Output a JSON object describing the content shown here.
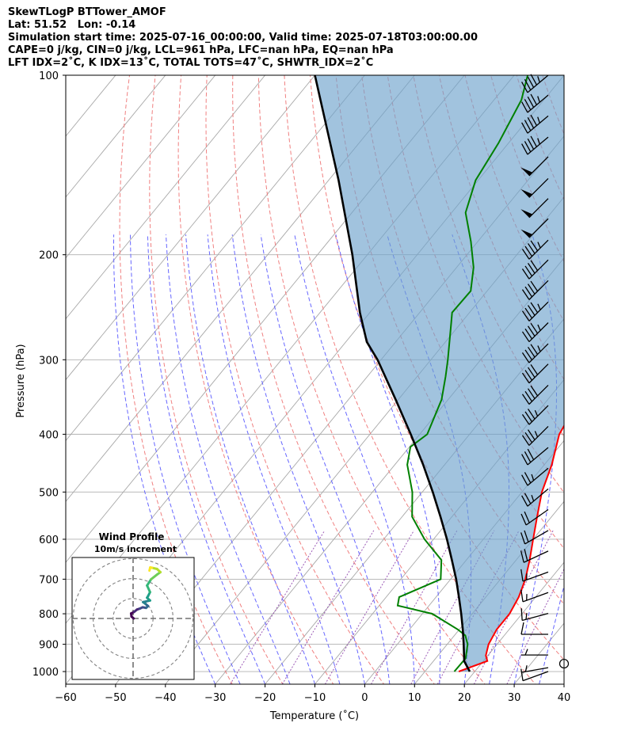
{
  "header": {
    "line1": "SkewTLogP BTTower_AMOF",
    "line2": "Lat: 51.52   Lon: -0.14",
    "line3": "Simulation start time: 2025-07-16_00:00:00, Valid time: 2025-07-18T03:00:00.00",
    "line4": "CAPE=0 j/kg, CIN=0 j/kg, LCL=961 hPa, LFC=nan hPa, EQ=nan hPa",
    "line5": "LFT IDX=2˚C, K IDX=13˚C, TOTAL TOTS=47˚C, SHWTR_IDX=2˚C"
  },
  "chart_data": {
    "type": "line",
    "xlabel": "Temperature (˚C)",
    "ylabel": "Pressure (hPa)",
    "xlim": [
      -60,
      40
    ],
    "ylim": [
      1050,
      100
    ],
    "y_scale": "log",
    "skew": true,
    "grid": true,
    "xticks": [
      "−60",
      "−50",
      "−40",
      "−30",
      "−20",
      "−10",
      "0",
      "10",
      "20",
      "30",
      "40"
    ],
    "xtick_values": [
      -60,
      -50,
      -40,
      -30,
      -20,
      -10,
      0,
      10,
      20,
      30,
      40
    ],
    "yticks": [
      "100",
      "200",
      "300",
      "400",
      "500",
      "600",
      "700",
      "800",
      "900",
      "1000"
    ],
    "ytick_values": [
      100,
      200,
      300,
      400,
      500,
      600,
      700,
      800,
      900,
      1000
    ],
    "series": [
      {
        "name": "",
        "role": "temperature",
        "color": "#ff0000",
        "points": [
          [
            1000,
            16.8
          ],
          [
            960,
            20.8
          ],
          [
            940,
            19.6
          ],
          [
            900,
            18.3
          ],
          [
            850,
            17.5
          ],
          [
            800,
            17.5
          ],
          [
            750,
            16.6
          ],
          [
            700,
            15.0
          ],
          [
            650,
            12.7
          ],
          [
            600,
            10.0
          ],
          [
            550,
            7.1
          ],
          [
            500,
            4.0
          ],
          [
            450,
            1.5
          ],
          [
            400,
            -2.0
          ],
          [
            370,
            -3.0
          ],
          [
            340,
            -5.3
          ],
          [
            300,
            -7.4
          ],
          [
            280,
            -9.5
          ],
          [
            260,
            -12.9
          ],
          [
            250,
            -13.5
          ],
          [
            230,
            -12.0
          ],
          [
            215,
            -10.9
          ],
          [
            205,
            -9.0
          ],
          [
            190,
            -9.2
          ],
          [
            180,
            -10.1
          ],
          [
            170,
            -10.3
          ],
          [
            160,
            -9.6
          ],
          [
            150,
            -8.8
          ],
          [
            140,
            -10.7
          ],
          [
            130,
            -14.1
          ],
          [
            120,
            -17.2
          ],
          [
            110,
            -19.2
          ],
          [
            100,
            -21.2
          ]
        ]
      },
      {
        "name": "",
        "role": "dewpoint",
        "color": "#008000",
        "points": [
          [
            1000,
            15.9
          ],
          [
            950,
            16.0
          ],
          [
            900,
            14.1
          ],
          [
            870,
            12.2
          ],
          [
            850,
            9.7
          ],
          [
            800,
            2.0
          ],
          [
            775,
            -6.3
          ],
          [
            750,
            -7.4
          ],
          [
            700,
            -2.0
          ],
          [
            650,
            -5.0
          ],
          [
            600,
            -11.8
          ],
          [
            550,
            -18.0
          ],
          [
            500,
            -22.0
          ],
          [
            450,
            -27.5
          ],
          [
            420,
            -29.8
          ],
          [
            400,
            -28.5
          ],
          [
            350,
            -31.3
          ],
          [
            320,
            -34.3
          ],
          [
            300,
            -36.6
          ],
          [
            260,
            -42.0
          ],
          [
            250,
            -43.5
          ],
          [
            230,
            -43.3
          ],
          [
            210,
            -46.6
          ],
          [
            190,
            -51.4
          ],
          [
            170,
            -57.2
          ],
          [
            150,
            -60.5
          ],
          [
            130,
            -62.0
          ],
          [
            110,
            -64.5
          ],
          [
            100,
            -67.3
          ]
        ]
      },
      {
        "name": "",
        "role": "parcel",
        "color": "#000000",
        "points": [
          [
            1000,
            19.0
          ],
          [
            961,
            16.2
          ],
          [
            900,
            13.3
          ],
          [
            850,
            10.7
          ],
          [
            800,
            7.8
          ],
          [
            750,
            4.6
          ],
          [
            700,
            1.1
          ],
          [
            650,
            -2.9
          ],
          [
            600,
            -7.3
          ],
          [
            550,
            -12.3
          ],
          [
            500,
            -17.9
          ],
          [
            450,
            -24.3
          ],
          [
            400,
            -31.8
          ],
          [
            350,
            -40.5
          ],
          [
            300,
            -50.7
          ],
          [
            280,
            -55.8
          ],
          [
            250,
            -62.0
          ],
          [
            200,
            -73.0
          ],
          [
            150,
            -88.0
          ],
          [
            100,
            -110.0
          ]
        ]
      }
    ],
    "shading": "between temperature and parcel",
    "wind_barbs": {
      "pressures": [
        100,
        108,
        117,
        127,
        137,
        149,
        161,
        174,
        189,
        204,
        221,
        240,
        260,
        282,
        305,
        331,
        358,
        388,
        421,
        456,
        494,
        535,
        580,
        628,
        681,
        737,
        799,
        866,
        938,
        985,
        1000
      ],
      "speeds": [
        45,
        45,
        45,
        45,
        50,
        50,
        50,
        50,
        45,
        40,
        40,
        45,
        45,
        45,
        40,
        40,
        35,
        35,
        30,
        25,
        25,
        20,
        20,
        20,
        15,
        15,
        15,
        10,
        5,
        5,
        10
      ],
      "directions": [
        230,
        230,
        230,
        230,
        225,
        225,
        225,
        225,
        225,
        225,
        225,
        225,
        225,
        225,
        225,
        225,
        225,
        225,
        230,
        230,
        230,
        235,
        240,
        245,
        250,
        250,
        255,
        270,
        270,
        260,
        250
      ],
      "calm_marker_pressure": 970
    },
    "hodograph": {
      "title": "Wind Profile",
      "subtitle": "10m/s increment",
      "rings_ms": [
        10,
        20,
        30
      ],
      "points": [
        [
          0.3,
          0.0
        ],
        [
          -0.8,
          1.0
        ],
        [
          -1.0,
          2.5
        ],
        [
          0.5,
          3.3
        ],
        [
          2.0,
          4.5
        ],
        [
          3.5,
          5.0
        ],
        [
          4.8,
          5.6
        ],
        [
          6.5,
          5.3
        ],
        [
          7.5,
          6.2
        ],
        [
          6.0,
          7.5
        ],
        [
          5.0,
          8.2
        ],
        [
          8.5,
          9.0
        ],
        [
          7.0,
          10.4
        ],
        [
          7.5,
          11.2
        ],
        [
          8.5,
          13.2
        ],
        [
          7.0,
          16.5
        ],
        [
          9.0,
          19.6
        ],
        [
          12.0,
          22.0
        ],
        [
          13.7,
          23.2
        ],
        [
          12.0,
          24.8
        ],
        [
          9.5,
          25.4
        ],
        [
          8.6,
          25.6
        ],
        [
          8.2,
          24.0
        ]
      ]
    }
  }
}
